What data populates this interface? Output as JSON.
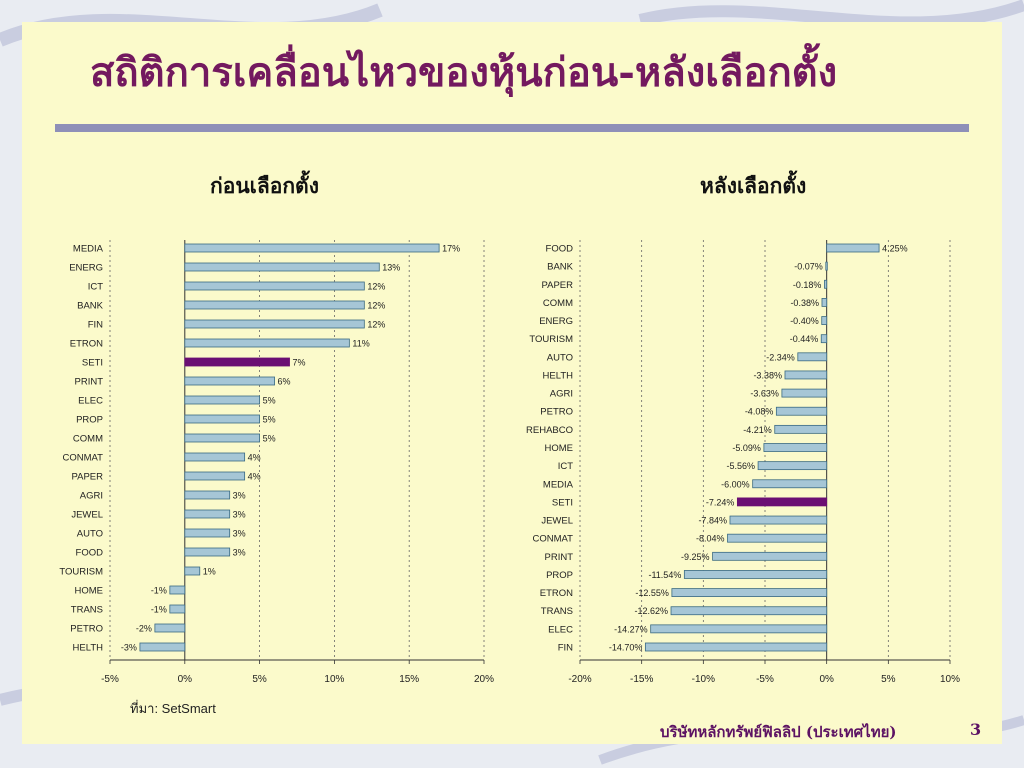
{
  "slide": {
    "title": "สถิติการเคลื่อนไหวของหุ้นก่อน-หลังเลือกตั้ง",
    "source": "ที่มา: SetSmart",
    "footer": "บริษัทหลักทรัพย์ฟิลลิป (ประเทศไทย)",
    "page_number": "3"
  },
  "colors": {
    "bar": "#a6c6d6",
    "bar_border": "#3a6a82",
    "highlight": "#6b0f73",
    "title": "#73195f"
  },
  "chart_data": [
    {
      "type": "bar",
      "orientation": "horizontal",
      "title": "ก่อนเลือกตั้ง",
      "categories": [
        "MEDIA",
        "ENERG",
        "ICT",
        "BANK",
        "FIN",
        "ETRON",
        "SETI",
        "PRINT",
        "ELEC",
        "PROP",
        "COMM",
        "CONMAT",
        "PAPER",
        "AGRI",
        "JEWEL",
        "AUTO",
        "FOOD",
        "TOURISM",
        "HOME",
        "TRANS",
        "PETRO",
        "HELTH"
      ],
      "values": [
        17,
        13,
        12,
        12,
        12,
        11,
        7,
        6,
        5,
        5,
        5,
        4,
        4,
        3,
        3,
        3,
        3,
        1,
        -1,
        -1,
        -2,
        -3
      ],
      "value_labels": [
        "17%",
        "13%",
        "12%",
        "12%",
        "12%",
        "11%",
        "7%",
        "6%",
        "5%",
        "5%",
        "5%",
        "4%",
        "4%",
        "3%",
        "3%",
        "3%",
        "3%",
        "1%",
        "-1%",
        "-1%",
        "-2%",
        "-3%"
      ],
      "highlight": "SETI",
      "xlim": [
        -5,
        20
      ],
      "xticks": [
        -5,
        0,
        5,
        10,
        15,
        20
      ],
      "xtick_labels": [
        "-5%",
        "0%",
        "5%",
        "10%",
        "15%",
        "20%"
      ],
      "grid": "vertical-dashed"
    },
    {
      "type": "bar",
      "orientation": "horizontal",
      "title": "หลังเลือกตั้ง",
      "categories": [
        "FOOD",
        "BANK",
        "PAPER",
        "COMM",
        "ENERG",
        "TOURISM",
        "AUTO",
        "HELTH",
        "AGRI",
        "PETRO",
        "REHABCO",
        "HOME",
        "ICT",
        "MEDIA",
        "SETI",
        "JEWEL",
        "CONMAT",
        "PRINT",
        "PROP",
        "ETRON",
        "TRANS",
        "ELEC",
        "FIN"
      ],
      "values": [
        4.25,
        -0.07,
        -0.18,
        -0.38,
        -0.4,
        -0.44,
        -2.34,
        -3.38,
        -3.63,
        -4.08,
        -4.21,
        -5.09,
        -5.56,
        -6.0,
        -7.24,
        -7.84,
        -8.04,
        -9.25,
        -11.54,
        -12.55,
        -12.62,
        -14.27,
        -14.7
      ],
      "value_labels": [
        "4.25%",
        "-0.07%",
        "-0.18%",
        "-0.38%",
        "-0.40%",
        "-0.44%",
        "-2.34%",
        "-3.38%",
        "-3.63%",
        "-4.08%",
        "-4.21%",
        "-5.09%",
        "-5.56%",
        "-6.00%",
        "-7.24%",
        "-7.84%",
        "-8.04%",
        "-9.25%",
        "-11.54%",
        "-12.55%",
        "-12.62%",
        "-14.27%",
        "-14.70%"
      ],
      "highlight": "SETI",
      "xlim": [
        -20,
        10
      ],
      "xticks": [
        -20,
        -15,
        -10,
        -5,
        0,
        5,
        10
      ],
      "xtick_labels": [
        "-20%",
        "-15%",
        "-10%",
        "-5%",
        "0%",
        "5%",
        "10%"
      ],
      "grid": "vertical-dashed"
    }
  ]
}
